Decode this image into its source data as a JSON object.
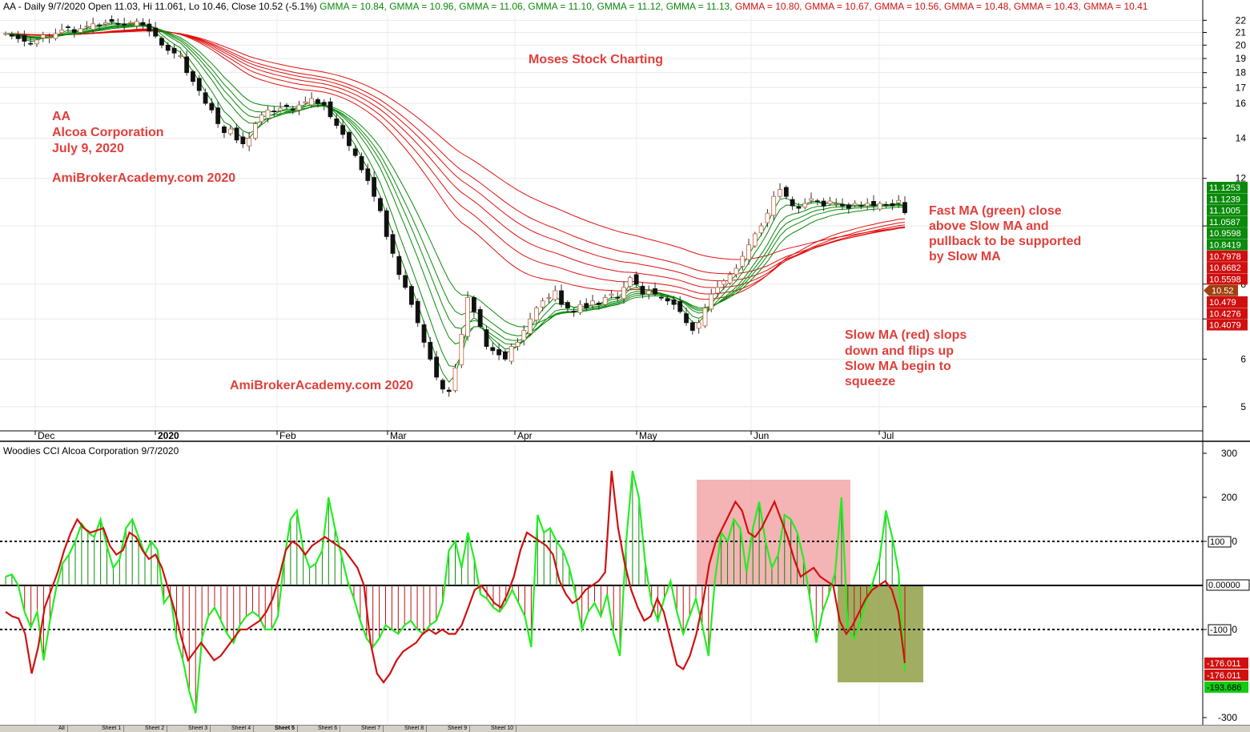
{
  "header": {
    "items": [
      {
        "text": "AA - Daily 9/7/2020 Open 11.03, Hi 11.061, Lo 10.46, Close 10.52 (-5.1%)",
        "color": "#000000"
      },
      {
        "text": "GMMA = 10.84,",
        "color": "#0a8a0a"
      },
      {
        "text": "GMMA = 10.96,",
        "color": "#0a8a0a"
      },
      {
        "text": "GMMA = 11.06,",
        "color": "#0a8a0a"
      },
      {
        "text": "GMMA = 11.10,",
        "color": "#0a8a0a"
      },
      {
        "text": "GMMA = 11.12,",
        "color": "#0a8a0a"
      },
      {
        "text": "GMMA = 11.13,",
        "color": "#0a8a0a"
      },
      {
        "text": "GMMA = 10.80,",
        "color": "#d01010"
      },
      {
        "text": "GMMA = 10.67,",
        "color": "#d01010"
      },
      {
        "text": "GMMA = 10.56,",
        "color": "#d01010"
      },
      {
        "text": "GMMA = 10.48,",
        "color": "#d01010"
      },
      {
        "text": "GMMA = 10.43,",
        "color": "#d01010"
      },
      {
        "text": "GMMA = 10.41",
        "color": "#d01010"
      }
    ]
  },
  "annotations": {
    "ticker": "AA",
    "company": "Alcoa Corporation",
    "date": "July 9, 2020",
    "site1": "AmiBrokerAcademy.com 2020",
    "site2": "AmiBrokerAcademy.com  2020",
    "watermark": "Moses Stock Charting",
    "fast_note": [
      "Fast MA (green) close",
      "above Slow MA and",
      "pullback to be supported",
      "by Slow MA"
    ],
    "slow_note": [
      "Slow MA (red) slops",
      "down and flips up",
      "Slow MA begin to",
      "squeeze"
    ]
  },
  "colors": {
    "up": "#0a8a0a",
    "down": "#d01010",
    "annotation": "#e0403c",
    "cci_line": "#22ee22",
    "turbo_line": "#d01010",
    "pink_zone": "#f2a6a8",
    "olive_zone": "#8a9a3a",
    "last_price": "#a04010"
  },
  "chart_data": [
    {
      "type": "candlestick",
      "title": "AA - Daily 9/7/2020",
      "ohlc_last": {
        "open": 11.03,
        "high": 11.061,
        "low": 10.46,
        "close": 10.52,
        "change": "(-5.1%)"
      },
      "months": [
        "Dec",
        "2020",
        "Feb",
        "Mar",
        "Apr",
        "May",
        "Jun",
        "Jul"
      ],
      "y_ticks": [
        5,
        6,
        7,
        8,
        10,
        12,
        14,
        16,
        17,
        18,
        19,
        20,
        21,
        22
      ],
      "ylim": [
        4.6,
        22.5
      ],
      "y_scale": "log",
      "close": [
        20.9,
        20.7,
        20.5,
        20.3,
        20.1,
        20.4,
        20.8,
        20.6,
        20.9,
        21.2,
        21.4,
        21.0,
        21.3,
        21.5,
        21.7,
        21.6,
        21.8,
        21.9,
        21.7,
        21.6,
        21.8,
        21.9,
        21.6,
        21.1,
        20.7,
        20.0,
        19.6,
        19.4,
        19.2,
        18.0,
        17.4,
        16.8,
        16.0,
        15.6,
        14.8,
        14.3,
        14.5,
        13.9,
        13.7,
        14.0,
        14.8,
        15.3,
        15.6,
        15.5,
        15.7,
        15.8,
        15.6,
        15.9,
        16.1,
        16.3,
        16.0,
        15.9,
        15.2,
        14.7,
        14.2,
        13.6,
        13.1,
        12.4,
        11.9,
        11.2,
        10.6,
        9.6,
        9.0,
        8.3,
        7.9,
        7.4,
        6.9,
        6.4,
        6.0,
        5.6,
        5.35,
        5.3,
        5.8,
        6.6,
        7.6,
        7.2,
        6.8,
        6.3,
        6.2,
        6.1,
        6.0,
        6.3,
        6.4,
        6.7,
        7.0,
        7.3,
        7.5,
        7.6,
        7.8,
        7.4,
        7.3,
        7.2,
        7.4,
        7.3,
        7.5,
        7.4,
        7.6,
        7.7,
        7.6,
        7.9,
        8.2,
        8.0,
        7.7,
        7.8,
        7.7,
        7.6,
        7.5,
        7.4,
        7.2,
        6.9,
        6.7,
        6.9,
        7.3,
        7.7,
        7.9,
        8.1,
        8.3,
        8.5,
        8.9,
        9.3,
        9.7,
        10.0,
        10.5,
        11.2,
        11.5,
        11.2,
        10.8,
        10.7,
        10.9,
        11.1,
        11.0,
        10.8,
        11.0,
        10.9,
        10.8,
        10.7,
        10.9,
        10.8,
        10.9,
        10.8,
        10.9,
        10.85,
        10.8,
        11.03,
        10.52
      ],
      "gmma_fast_last": [
        10.84,
        10.96,
        11.06,
        11.1,
        11.12,
        11.13
      ],
      "gmma_slow_last": [
        10.8,
        10.67,
        10.56,
        10.48,
        10.43,
        10.41
      ],
      "right_axis_labels": [
        {
          "value": 11.1253,
          "text": "11.1253",
          "kind": "fast"
        },
        {
          "value": 11.1239,
          "text": "11.1239",
          "kind": "fast"
        },
        {
          "value": 11.1005,
          "text": "11.1005",
          "kind": "fast"
        },
        {
          "value": 11.0587,
          "text": "11.0587",
          "kind": "fast"
        },
        {
          "value": 10.9598,
          "text": "10.9598",
          "kind": "fast"
        },
        {
          "value": 10.8419,
          "text": "10.8419",
          "kind": "fast"
        },
        {
          "value": 10.7978,
          "text": "10.7978",
          "kind": "slow"
        },
        {
          "value": 10.6682,
          "text": "10.6682",
          "kind": "slow"
        },
        {
          "value": 10.5598,
          "text": "10.5598",
          "kind": "slow"
        },
        {
          "value": 10.52,
          "text": "10.52",
          "kind": "last"
        },
        {
          "value": 10.479,
          "text": "10.479",
          "kind": "slow"
        },
        {
          "value": 10.4276,
          "text": "10.4276",
          "kind": "slow"
        },
        {
          "value": 10.4079,
          "text": "10.4079",
          "kind": "slow"
        }
      ]
    },
    {
      "type": "line",
      "title": "Woodies CCI  Alcoa Corporation 9/7/2020",
      "y_ticks": [
        300,
        200,
        100,
        -100,
        -300
      ],
      "ylim": [
        -300,
        300
      ],
      "reference_lines": [
        100,
        0,
        -100
      ],
      "series": [
        {
          "kind": "cci",
          "values": [
            20,
            25,
            0,
            -60,
            -95,
            -60,
            -170,
            -80,
            -5,
            50,
            70,
            100,
            140,
            120,
            110,
            150,
            90,
            40,
            60,
            130,
            150,
            110,
            70,
            100,
            80,
            -40,
            -20,
            -120,
            -170,
            -240,
            -290,
            -120,
            -70,
            -50,
            -80,
            -110,
            -130,
            -90,
            -70,
            -60,
            -70,
            -100,
            -100,
            -70,
            60,
            150,
            170,
            80,
            40,
            50,
            80,
            200,
            130,
            70,
            10,
            -30,
            -80,
            -120,
            -140,
            -120,
            -90,
            -100,
            -110,
            -90,
            -80,
            -100,
            -110,
            -90,
            -80,
            -40,
            80,
            100,
            40,
            120,
            60,
            -20,
            -30,
            -50,
            -60,
            -40,
            -10,
            -40,
            -70,
            -140,
            160,
            120,
            130,
            100,
            80,
            40,
            -20,
            -100,
            -60,
            -40,
            -70,
            -20,
            -110,
            -160,
            100,
            260,
            200,
            50,
            -40,
            -80,
            -30,
            10,
            -60,
            -110,
            -70,
            -30,
            -90,
            -160,
            10,
            120,
            100,
            150,
            130,
            30,
            130,
            190,
            100,
            40,
            70,
            160,
            150,
            120,
            60,
            -30,
            -130,
            -60,
            -20,
            30,
            200,
            -100,
            -120,
            -80,
            -30,
            10,
            60,
            170,
            110,
            30,
            -194
          ]
        },
        {
          "kind": "turbo",
          "values": [
            -60,
            -70,
            -75,
            -110,
            -200,
            -140,
            -50,
            -10,
            30,
            80,
            120,
            150,
            130,
            120,
            125,
            130,
            90,
            70,
            80,
            120,
            110,
            80,
            60,
            70,
            40,
            -10,
            -60,
            -120,
            -170,
            -150,
            -130,
            -150,
            -170,
            -160,
            -140,
            -120,
            -100,
            -100,
            -90,
            -80,
            -60,
            -30,
            20,
            80,
            100,
            90,
            70,
            90,
            100,
            110,
            100,
            90,
            80,
            60,
            40,
            0,
            -130,
            -200,
            -220,
            -200,
            -170,
            -150,
            -140,
            -130,
            -110,
            -100,
            -110,
            -100,
            -110,
            -110,
            -90,
            -50,
            -10,
            0,
            -20,
            -40,
            -50,
            -20,
            20,
            80,
            120,
            110,
            100,
            90,
            70,
            10,
            -20,
            -40,
            -30,
            -10,
            0,
            10,
            30,
            260,
            130,
            50,
            -10,
            -50,
            -80,
            -70,
            -30,
            -60,
            -120,
            -180,
            -190,
            -160,
            -110,
            -40,
            50,
            100,
            130,
            160,
            190,
            170,
            120,
            110,
            130,
            160,
            190,
            150,
            110,
            60,
            20,
            30,
            40,
            20,
            10,
            0,
            -80,
            -110,
            -90,
            -60,
            -30,
            -10,
            0,
            10,
            -10,
            -60,
            -176
          ]
        }
      ],
      "zones": [
        {
          "kind": "pink",
          "y0": 0,
          "y1": 240
        },
        {
          "kind": "olive",
          "y0": -220,
          "y1": 0
        }
      ],
      "right_axis_labels": [
        {
          "value": 100,
          "text": "100",
          "kind": "ref"
        },
        {
          "value": 0,
          "text": "0.00000",
          "kind": "ref"
        },
        {
          "value": -100,
          "text": "-100",
          "kind": "ref"
        },
        {
          "value": -176.011,
          "text": "-176.011",
          "kind": "down"
        },
        {
          "value": -176.011,
          "text": "-176.011",
          "kind": "down"
        },
        {
          "value": -193.686,
          "text": "-193.686",
          "kind": "up"
        }
      ]
    }
  ],
  "sheets": [
    "All",
    "Sheet 1",
    "Sheet 2",
    "Sheet 3",
    "Sheet 4",
    "Sheet 5",
    "Sheet 6",
    "Sheet 7",
    "Sheet 8",
    "Sheet 9",
    "Sheet 10"
  ]
}
